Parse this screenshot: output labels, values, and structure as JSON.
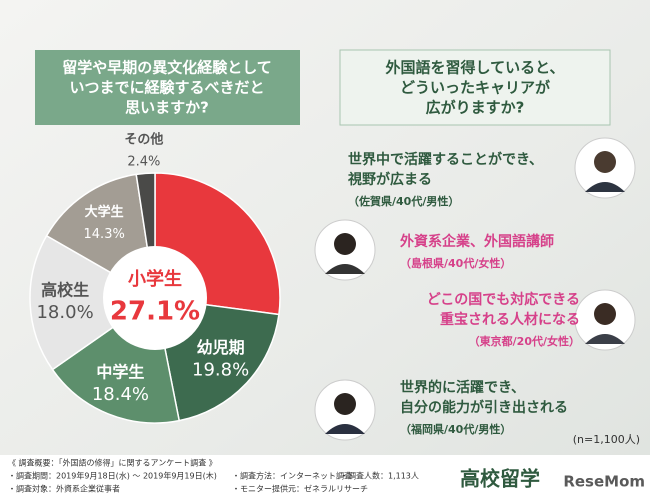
{
  "chart_data": {
    "type": "pie",
    "categories": [
      "小学生",
      "幼児期",
      "中学生",
      "高校生",
      "大学生",
      "その他"
    ],
    "values": [
      27.1,
      19.8,
      18.4,
      18.0,
      14.3,
      2.4
    ],
    "value_labels": [
      "27.1%",
      "19.8%",
      "18.4%",
      "18.0%",
      "14.3%",
      "2.4%"
    ],
    "colors": [
      "#e8383d",
      "#3d6b4f",
      "#5d8f6c",
      "#e6e6e6",
      "#a39d94",
      "#4a4a48"
    ]
  },
  "left_panel": {
    "title_lines": [
      "留学や早期の異文化経験として",
      "いつまでに経験するべきだと",
      "思いますか?"
    ]
  },
  "right_panel": {
    "title_lines": [
      "外国語を習得していると、",
      "どういったキャリアが",
      "広がりますか?"
    ],
    "quotes": [
      {
        "lines": [
          "世界中で活躍することができ、",
          "視野が広まる"
        ],
        "source": "（佐賀県/40代/男性）"
      },
      {
        "lines": [
          "外資系企業、外国語講師"
        ],
        "source": "（島根県/40代/女性）"
      },
      {
        "lines": [
          "どこの国でも対応できる",
          "重宝される人材になる"
        ],
        "source": "（東京都/20代/女性）"
      },
      {
        "lines": [
          "世界的に活躍でき、",
          "自分の能力が引き出される"
        ],
        "source": "（福岡県/40代/男性）"
      }
    ],
    "sample_size": "(n=1,100人)"
  },
  "footer": {
    "heading": "《 調査概要：「外国語の修得」に関するアンケート調査 》",
    "items": [
      "・調査期間：2019年9月18日(水) ～ 2019年9月19日(木)",
      "・調査方法：インターネット調査",
      "・調査人数：1,113人",
      "・調査対象：外資系企業従事者",
      "・モニター提供元：ゼネラルリサーチ"
    ],
    "logo": "高校留学",
    "brand": "ReseMom"
  }
}
